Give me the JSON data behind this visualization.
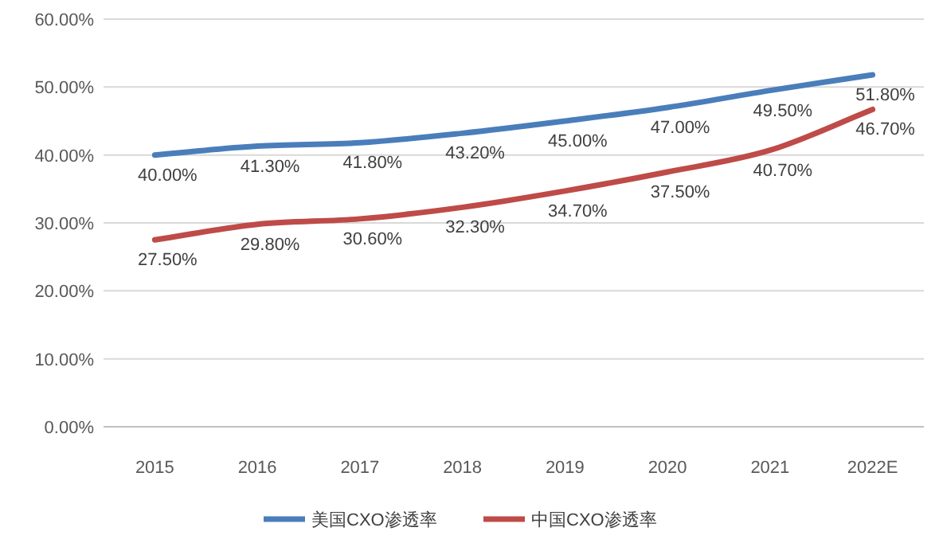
{
  "chart_data": {
    "type": "line",
    "categories": [
      "2015",
      "2016",
      "2017",
      "2018",
      "2019",
      "2020",
      "2021",
      "2022E"
    ],
    "series": [
      {
        "name": "美国CXO渗透率",
        "color": "#4a7ebb",
        "values": [
          40.0,
          41.3,
          41.8,
          43.2,
          45.0,
          47.0,
          49.5,
          51.8
        ],
        "value_labels": [
          "40.00%",
          "41.30%",
          "41.80%",
          "43.20%",
          "45.00%",
          "47.00%",
          "49.50%",
          "51.80%"
        ]
      },
      {
        "name": "中国CXO渗透率",
        "color": "#be4b48",
        "values": [
          27.5,
          29.8,
          30.6,
          32.3,
          34.7,
          37.5,
          40.7,
          46.7
        ],
        "value_labels": [
          "27.50%",
          "29.80%",
          "30.60%",
          "32.30%",
          "34.70%",
          "37.50%",
          "40.70%",
          "46.70%"
        ]
      }
    ],
    "ylim": [
      0,
      60
    ],
    "yticks": [
      {
        "value": 0,
        "label": "0.00%"
      },
      {
        "value": 10,
        "label": "10.00%"
      },
      {
        "value": 20,
        "label": "20.00%"
      },
      {
        "value": 30,
        "label": "30.00%"
      },
      {
        "value": 40,
        "label": "40.00%"
      },
      {
        "value": 50,
        "label": "50.00%"
      },
      {
        "value": 60,
        "label": "60.00%"
      }
    ],
    "grid": "y",
    "legend": "bottom",
    "marker": "none",
    "line_style": "solid"
  }
}
